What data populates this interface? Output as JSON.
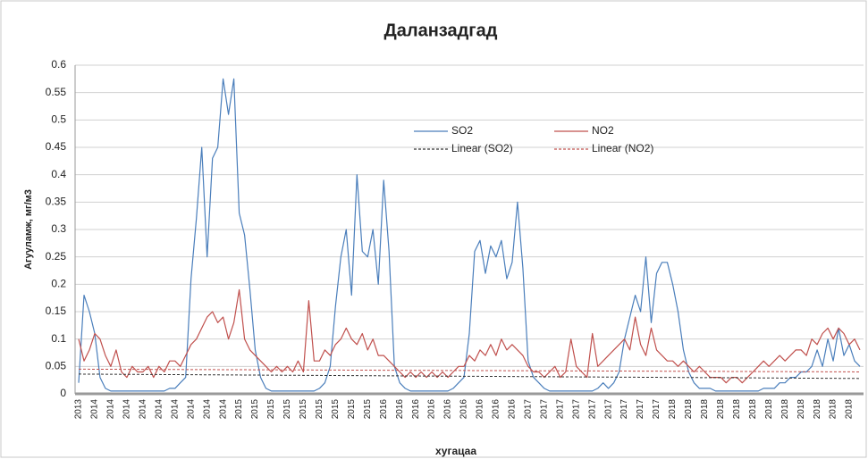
{
  "chart_data": {
    "type": "line",
    "title": "Даланзадгад",
    "y_label": "Агууламж, мг/м3",
    "x_label": "хугацаа",
    "categories": [
      "2013",
      null,
      null,
      "2014",
      null,
      null,
      "2014",
      null,
      null,
      "2014",
      null,
      null,
      "2014",
      null,
      null,
      "2014",
      null,
      null,
      "2014",
      null,
      null,
      "2014",
      null,
      null,
      "2014",
      null,
      null,
      "2014",
      null,
      null,
      "2015",
      null,
      null,
      "2015",
      null,
      null,
      "2015",
      null,
      null,
      "2015",
      null,
      null,
      "2015",
      null,
      null,
      "2015",
      null,
      null,
      "2015",
      null,
      null,
      "2015",
      null,
      null,
      "2015",
      null,
      null,
      "2016",
      null,
      null,
      "2016",
      null,
      null,
      "2016",
      null,
      null,
      "2016",
      null,
      null,
      "2016",
      null,
      null,
      "2016",
      null,
      null,
      "2016",
      null,
      null,
      "2016",
      null,
      null,
      "2016",
      null,
      null,
      "2017",
      null,
      null,
      "2017",
      null,
      null,
      "2017",
      null,
      null,
      "2017",
      null,
      null,
      "2017",
      null,
      null,
      "2017",
      null,
      null,
      "2017",
      null,
      null,
      "2017",
      null,
      null,
      "2017",
      null,
      null,
      "2018",
      null,
      null,
      "2018",
      null,
      null,
      "2018",
      null,
      null,
      "2018",
      null,
      null,
      "2018",
      null,
      null,
      "2018",
      null,
      null,
      "2018",
      null,
      null,
      "2018",
      null,
      null,
      "2018",
      null,
      null,
      "2018",
      null,
      null,
      "2018",
      null,
      null,
      "2018",
      null,
      null
    ],
    "series": [
      {
        "name": "SO2",
        "color": "#4a7ebb",
        "values": [
          0.02,
          0.18,
          0.15,
          0.11,
          0.03,
          0.01,
          0.005,
          0.005,
          0.005,
          0.005,
          0.005,
          0.005,
          0.005,
          0.005,
          0.005,
          0.005,
          0.005,
          0.01,
          0.01,
          0.02,
          0.03,
          0.21,
          0.32,
          0.45,
          0.25,
          0.43,
          0.45,
          0.575,
          0.51,
          0.575,
          0.33,
          0.29,
          0.19,
          0.08,
          0.03,
          0.01,
          0.005,
          0.005,
          0.005,
          0.005,
          0.005,
          0.005,
          0.005,
          0.005,
          0.005,
          0.01,
          0.02,
          0.05,
          0.16,
          0.25,
          0.3,
          0.18,
          0.4,
          0.26,
          0.25,
          0.3,
          0.2,
          0.39,
          0.26,
          0.05,
          0.02,
          0.01,
          0.005,
          0.005,
          0.005,
          0.005,
          0.005,
          0.005,
          0.005,
          0.005,
          0.01,
          0.02,
          0.03,
          0.11,
          0.26,
          0.28,
          0.22,
          0.27,
          0.25,
          0.28,
          0.21,
          0.24,
          0.35,
          0.23,
          0.06,
          0.03,
          0.02,
          0.01,
          0.005,
          0.005,
          0.005,
          0.005,
          0.005,
          0.005,
          0.005,
          0.005,
          0.005,
          0.01,
          0.02,
          0.01,
          0.02,
          0.04,
          0.1,
          0.14,
          0.18,
          0.15,
          0.25,
          0.13,
          0.22,
          0.24,
          0.24,
          0.2,
          0.15,
          0.08,
          0.04,
          0.02,
          0.01,
          0.01,
          0.01,
          0.005,
          0.005,
          0.005,
          0.005,
          0.005,
          0.005,
          0.005,
          0.005,
          0.005,
          0.01,
          0.01,
          0.01,
          0.02,
          0.02,
          0.03,
          0.03,
          0.04,
          0.04,
          0.05,
          0.08,
          0.05,
          0.1,
          0.06,
          0.12,
          0.07,
          0.09,
          0.06,
          0.05
        ]
      },
      {
        "name": "NO2",
        "color": "#c0504d",
        "values": [
          0.1,
          0.06,
          0.08,
          0.11,
          0.1,
          0.07,
          0.05,
          0.08,
          0.04,
          0.03,
          0.05,
          0.04,
          0.04,
          0.05,
          0.03,
          0.05,
          0.04,
          0.06,
          0.06,
          0.05,
          0.07,
          0.09,
          0.1,
          0.12,
          0.14,
          0.15,
          0.13,
          0.14,
          0.1,
          0.13,
          0.19,
          0.1,
          0.08,
          0.07,
          0.06,
          0.05,
          0.04,
          0.05,
          0.04,
          0.05,
          0.04,
          0.06,
          0.04,
          0.17,
          0.06,
          0.06,
          0.08,
          0.07,
          0.09,
          0.1,
          0.12,
          0.1,
          0.09,
          0.11,
          0.08,
          0.1,
          0.07,
          0.07,
          0.06,
          0.05,
          0.04,
          0.03,
          0.04,
          0.03,
          0.04,
          0.03,
          0.04,
          0.03,
          0.04,
          0.03,
          0.04,
          0.05,
          0.05,
          0.07,
          0.06,
          0.08,
          0.07,
          0.09,
          0.07,
          0.1,
          0.08,
          0.09,
          0.08,
          0.07,
          0.05,
          0.04,
          0.04,
          0.03,
          0.04,
          0.05,
          0.03,
          0.04,
          0.1,
          0.05,
          0.04,
          0.03,
          0.11,
          0.05,
          0.06,
          0.07,
          0.08,
          0.09,
          0.1,
          0.08,
          0.14,
          0.09,
          0.07,
          0.12,
          0.08,
          0.07,
          0.06,
          0.06,
          0.05,
          0.06,
          0.05,
          0.04,
          0.05,
          0.04,
          0.03,
          0.03,
          0.03,
          0.02,
          0.03,
          0.03,
          0.02,
          0.03,
          0.04,
          0.05,
          0.06,
          0.05,
          0.06,
          0.07,
          0.06,
          0.07,
          0.08,
          0.08,
          0.07,
          0.1,
          0.09,
          0.11,
          0.12,
          0.1,
          0.12,
          0.11,
          0.09,
          0.1,
          0.08
        ]
      }
    ],
    "trendlines": [
      {
        "name": "Linear (SO2)",
        "color": "#333333",
        "values": [
          0.036,
          0.028
        ]
      },
      {
        "name": "Linear (NO2)",
        "color": "#c0504d",
        "values": [
          0.045,
          0.04
        ]
      }
    ],
    "ylim": [
      0,
      0.6
    ],
    "yticks": [
      0,
      0.05,
      0.1,
      0.15,
      0.2,
      0.25,
      0.3,
      0.35,
      0.4,
      0.45,
      0.5,
      0.55,
      0.6
    ],
    "grid": true
  }
}
